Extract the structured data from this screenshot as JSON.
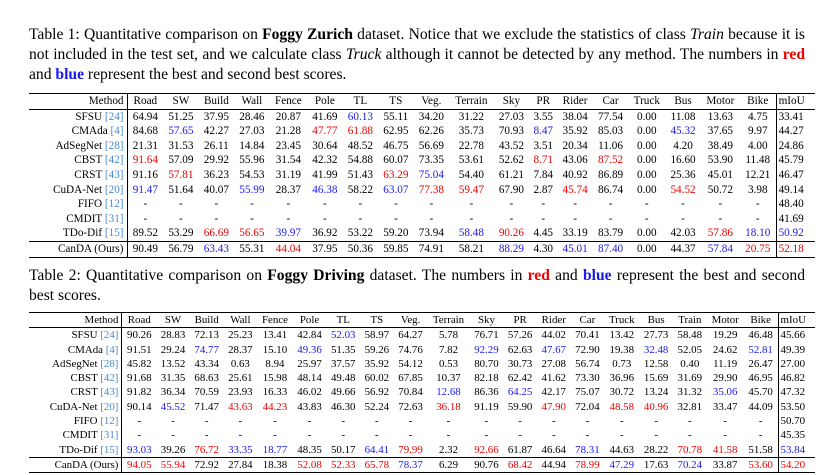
{
  "table1": {
    "caption": {
      "s1": "Table 1: Quantitative comparison on ",
      "s2": "Foggy Zurich",
      "s3": " dataset. Notice that we exclude the statistics of class ",
      "s4": "Train",
      "s5": " because it is not included in the test set, and we calculate class ",
      "s6": "Truck",
      "s7": " although it cannot be detected by any method. The numbers in ",
      "s8": "red",
      "s9": " and ",
      "s10": "blue",
      "s11": " represent the best and second best scores."
    },
    "headers": [
      "Method",
      "Road",
      "SW",
      "Build",
      "Wall",
      "Fence",
      "Pole",
      "TL",
      "TS",
      "Veg.",
      "Terrain",
      "Sky",
      "PR",
      "Rider",
      "Car",
      "Truck",
      "Bus",
      "Motor",
      "Bike",
      "mIoU"
    ],
    "rows": [
      {
        "name": "SFSU",
        "ref": "[24]",
        "cells": [
          "64.94",
          "51.25",
          "37.95",
          "28.46",
          "20.87",
          "41.69",
          "60.13",
          "55.11",
          "34.20",
          "31.22",
          "27.03",
          "3.55",
          "38.04",
          "77.54",
          "0.00",
          "11.08",
          "13.63",
          "4.75",
          "33.41"
        ],
        "marks": {
          "6": "b"
        }
      },
      {
        "name": "CMAda",
        "ref": "[4]",
        "cells": [
          "84.68",
          "57.65",
          "42.27",
          "27.03",
          "21.28",
          "47.77",
          "61.88",
          "62.95",
          "62.26",
          "35.73",
          "70.93",
          "8.47",
          "35.92",
          "85.03",
          "0.00",
          "45.32",
          "37.65",
          "9.97",
          "44.27"
        ],
        "marks": {
          "1": "b",
          "5": "r",
          "6": "r",
          "11": "b",
          "15": "b"
        }
      },
      {
        "name": "AdSegNet",
        "ref": "[28]",
        "cells": [
          "21.31",
          "31.53",
          "26.11",
          "14.84",
          "23.45",
          "30.64",
          "48.52",
          "46.75",
          "56.69",
          "22.78",
          "43.52",
          "3.51",
          "20.34",
          "11.06",
          "0.00",
          "4.20",
          "38.49",
          "4.00",
          "24.86"
        ],
        "marks": {}
      },
      {
        "name": "CBST",
        "ref": "[42]",
        "cells": [
          "91.64",
          "57.09",
          "29.92",
          "55.96",
          "31.54",
          "42.32",
          "54.88",
          "60.07",
          "73.35",
          "53.61",
          "52.62",
          "8.71",
          "43.06",
          "87.52",
          "0.00",
          "16.60",
          "53.90",
          "11.48",
          "45.79"
        ],
        "marks": {
          "0": "r",
          "11": "r",
          "13": "r"
        }
      },
      {
        "name": "CRST",
        "ref": "[43]",
        "cells": [
          "91.16",
          "57.81",
          "36.23",
          "54.53",
          "31.19",
          "41.99",
          "51.43",
          "63.29",
          "75.04",
          "54.40",
          "61.21",
          "7.84",
          "40.92",
          "86.89",
          "0.00",
          "25.36",
          "45.01",
          "12.21",
          "46.47"
        ],
        "marks": {
          "1": "r",
          "7": "r",
          "8": "b"
        }
      },
      {
        "name": "CuDA-Net",
        "ref": "[20]",
        "cells": [
          "91.47",
          "51.64",
          "40.07",
          "55.99",
          "28.37",
          "46.38",
          "58.22",
          "63.07",
          "77.38",
          "59.47",
          "67.90",
          "2.87",
          "45.74",
          "86.74",
          "0.00",
          "54.52",
          "50.72",
          "3.98",
          "49.14"
        ],
        "marks": {
          "0": "b",
          "3": "b",
          "5": "b",
          "7": "b",
          "8": "r",
          "9": "r",
          "12": "r",
          "15": "r"
        }
      },
      {
        "name": "FIFO",
        "ref": "[12]",
        "cells": [
          "-",
          "-",
          "-",
          "-",
          "-",
          "-",
          "-",
          "-",
          "-",
          "-",
          "-",
          "-",
          "-",
          "-",
          "-",
          "-",
          "-",
          "-",
          "48.40"
        ],
        "marks": {}
      },
      {
        "name": "CMDIT",
        "ref": "[31]",
        "cells": [
          "-",
          "-",
          "-",
          "-",
          "-",
          "-",
          "-",
          "-",
          "-",
          "-",
          "-",
          "-",
          "-",
          "-",
          "-",
          "-",
          "-",
          "-",
          "41.69"
        ],
        "marks": {}
      },
      {
        "name": "TDo-Dif",
        "ref": "[15]",
        "cells": [
          "89.52",
          "53.29",
          "66.69",
          "56.65",
          "39.97",
          "36.92",
          "53.22",
          "59.20",
          "73.94",
          "58.48",
          "90.26",
          "4.45",
          "33.19",
          "83.79",
          "0.00",
          "42.03",
          "57.86",
          "18.10",
          "50.92"
        ],
        "marks": {
          "2": "r",
          "3": "r",
          "4": "b",
          "9": "b",
          "10": "r",
          "16": "r",
          "17": "b",
          "18": "b"
        }
      },
      {
        "name": "CanDA (Ours)",
        "ref": "",
        "bold": true,
        "sep": true,
        "cells": [
          "90.49",
          "56.79",
          "63.43",
          "55.31",
          "44.04",
          "37.95",
          "50.36",
          "59.85",
          "74.91",
          "58.21",
          "88.29",
          "4.30",
          "45.01",
          "87.40",
          "0.00",
          "44.37",
          "57.84",
          "20.75",
          "52.18"
        ],
        "marks": {
          "2": "b",
          "4": "r",
          "10": "b",
          "12": "b",
          "13": "b",
          "16": "b",
          "17": "r",
          "18": "r"
        }
      }
    ]
  },
  "table2": {
    "caption": {
      "s1": "Table 2: Quantitative comparison on ",
      "s2": "Foggy Driving",
      "s3": " dataset. The numbers in ",
      "s4": "red",
      "s5": " and ",
      "s6": "blue",
      "s7": " represent the best and second best scores."
    },
    "headers": [
      "Method",
      "Road",
      "SW",
      "Build",
      "Wall",
      "Fence",
      "Pole",
      "TL",
      "TS",
      "Veg.",
      "Terrain",
      "Sky",
      "PR",
      "Rider",
      "Car",
      "Truck",
      "Bus",
      "Train",
      "Motor",
      "Bike",
      "mIoU"
    ],
    "rows": [
      {
        "name": "SFSU",
        "ref": "[24]",
        "cells": [
          "90.26",
          "28.83",
          "72.13",
          "25.23",
          "13.41",
          "42.84",
          "52.03",
          "58.97",
          "64.27",
          "5.78",
          "76.71",
          "57.26",
          "44.02",
          "70.41",
          "13.42",
          "27.73",
          "58.48",
          "19.29",
          "46.48",
          "45.66"
        ],
        "marks": {
          "6": "b"
        }
      },
      {
        "name": "CMAda",
        "ref": "[4]",
        "cells": [
          "91.51",
          "29.24",
          "74.77",
          "28.37",
          "15.10",
          "49.36",
          "51.35",
          "59.26",
          "74.76",
          "7.82",
          "92.29",
          "62.63",
          "47.67",
          "72.90",
          "19.38",
          "32.48",
          "52.05",
          "24.62",
          "52.81",
          "49.39"
        ],
        "marks": {
          "2": "b",
          "5": "b",
          "10": "b",
          "12": "b",
          "15": "b",
          "18": "b"
        }
      },
      {
        "name": "AdSegNet",
        "ref": "[28]",
        "cells": [
          "45.82",
          "13.52",
          "43.34",
          "0.63",
          "8.94",
          "25.97",
          "37.57",
          "35.92",
          "54.12",
          "0.53",
          "80.70",
          "30.73",
          "27.08",
          "56.74",
          "0.73",
          "12.58",
          "0.40",
          "11.19",
          "26.47",
          "27.00"
        ],
        "marks": {}
      },
      {
        "name": "CBST",
        "ref": "[42]",
        "cells": [
          "91.68",
          "31.35",
          "68.63",
          "25.61",
          "15.98",
          "48.14",
          "49.48",
          "60.02",
          "67.85",
          "10.37",
          "82.18",
          "62.42",
          "41.62",
          "73.30",
          "36.96",
          "15.69",
          "31.69",
          "29.90",
          "46.95",
          "46.82"
        ],
        "marks": {}
      },
      {
        "name": "CRST",
        "ref": "[43]",
        "cells": [
          "91.82",
          "36.34",
          "70.59",
          "23.93",
          "16.33",
          "46.02",
          "49.66",
          "56.92",
          "70.84",
          "12.68",
          "86.36",
          "64.25",
          "42.17",
          "75.07",
          "30.72",
          "13.24",
          "31.32",
          "35.06",
          "45.70",
          "47.32"
        ],
        "marks": {
          "9": "b",
          "11": "b",
          "17": "b"
        }
      },
      {
        "name": "CuDA-Net",
        "ref": "[20]",
        "cells": [
          "90.14",
          "45.52",
          "71.47",
          "43.63",
          "44.23",
          "43.83",
          "46.30",
          "52.24",
          "72.63",
          "36.18",
          "91.19",
          "59.90",
          "47.90",
          "72.04",
          "48.58",
          "40.96",
          "32.81",
          "33.47",
          "44.09",
          "53.50"
        ],
        "marks": {
          "1": "b",
          "3": "r",
          "4": "r",
          "9": "r",
          "12": "r",
          "14": "r",
          "15": "r"
        }
      },
      {
        "name": "FIFO",
        "ref": "[12]",
        "cells": [
          "-",
          "-",
          "-",
          "-",
          "-",
          "-",
          "-",
          "-",
          "-",
          "-",
          "-",
          "-",
          "-",
          "-",
          "-",
          "-",
          "-",
          "-",
          "-",
          "50.70"
        ],
        "marks": {}
      },
      {
        "name": "CMDIT",
        "ref": "[31]",
        "cells": [
          "-",
          "-",
          "-",
          "-",
          "-",
          "-",
          "-",
          "-",
          "-",
          "-",
          "-",
          "-",
          "-",
          "-",
          "-",
          "-",
          "-",
          "-",
          "-",
          "45.35"
        ],
        "marks": {}
      },
      {
        "name": "TDo-Dif",
        "ref": "[15]",
        "cells": [
          "93.03",
          "39.26",
          "76.72",
          "33.35",
          "18.77",
          "48.35",
          "50.17",
          "64.41",
          "79.99",
          "2.32",
          "92.66",
          "61.87",
          "46.64",
          "78.31",
          "44.63",
          "28.22",
          "70.78",
          "41.58",
          "51.58",
          "53.84"
        ],
        "marks": {
          "0": "b",
          "2": "r",
          "3": "b",
          "4": "b",
          "7": "b",
          "8": "r",
          "10": "r",
          "13": "b",
          "16": "r",
          "17": "r",
          "19": "b"
        }
      },
      {
        "name": "CanDA (Ours)",
        "ref": "",
        "bold": true,
        "sep": true,
        "cells": [
          "94.05",
          "55.94",
          "72.92",
          "27.84",
          "18.38",
          "52.08",
          "52.33",
          "65.78",
          "78.37",
          "6.29",
          "90.76",
          "68.42",
          "44.94",
          "78.99",
          "47.29",
          "17.63",
          "70.24",
          "33.87",
          "53.60",
          "54.20"
        ],
        "marks": {
          "0": "r",
          "1": "r",
          "5": "r",
          "6": "r",
          "7": "r",
          "8": "b",
          "11": "r",
          "13": "r",
          "14": "b",
          "16": "b",
          "18": "r",
          "19": "r"
        }
      }
    ]
  }
}
